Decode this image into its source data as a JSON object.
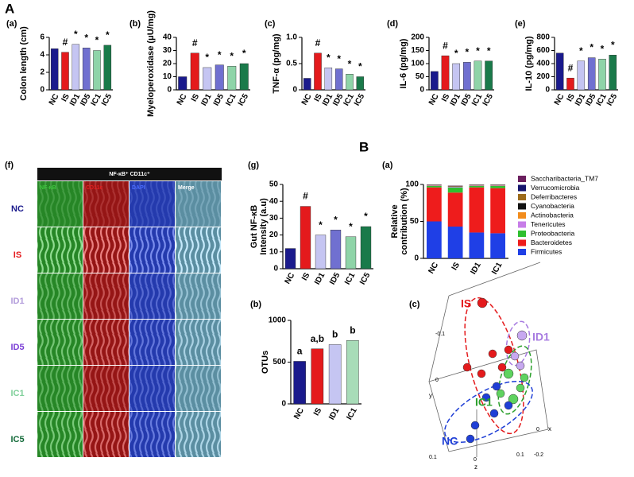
{
  "labels": {
    "A": "A",
    "B": "B"
  },
  "figure_f": {
    "panel": "(f)",
    "title": "NF-κB⁺ CD11c⁺",
    "columns": [
      "NF-κB",
      "CD11c",
      "DAPI",
      "Merge"
    ],
    "column_colors": [
      "#3ec43e",
      "#e02020",
      "#4a6cff",
      "#ffffff"
    ],
    "rows": [
      "NC",
      "IS",
      "ID1",
      "ID5",
      "IC1",
      "IC5"
    ],
    "row_colors": [
      "#1a1a8c",
      "#e41a1c",
      "#b39ddb",
      "#7b3fd6",
      "#7fcf9a",
      "#146b3a"
    ]
  },
  "pca": {
    "panel": "(c)",
    "groups": [
      "IS",
      "ID1",
      "IC1",
      "NC"
    ],
    "group_colors": [
      "#e41a1c",
      "#a77be0",
      "#2ca02c",
      "#1f3fd6"
    ],
    "ticks": [
      "-0.1",
      "0",
      "0.1",
      "0",
      "x",
      "y",
      "z",
      "0.1",
      "0",
      "-0.2"
    ]
  },
  "chart_data": [
    {
      "type": "bar",
      "panel": "(a)",
      "ylabel": [
        "Colon length (cm)"
      ],
      "categories": [
        "NC",
        "IS",
        "ID1",
        "ID5",
        "IC1",
        "IC5"
      ],
      "values": [
        4.7,
        4.3,
        5.2,
        4.8,
        4.5,
        5.1
      ],
      "colors": [
        "#1a1a8c",
        "#e41a1c",
        "#c5c5f2",
        "#7070d0",
        "#8fd4a8",
        "#1a7a4a"
      ],
      "annotations": [
        null,
        "#",
        "*",
        "*",
        "*",
        "*"
      ],
      "ylim": [
        0,
        6
      ],
      "yticks": [
        0,
        2,
        4,
        6
      ]
    },
    {
      "type": "bar",
      "panel": "(b)",
      "ylabel": [
        "Myeloperoxidase (μU/mg)"
      ],
      "categories": [
        "NC",
        "IS",
        "ID1",
        "ID5",
        "IC1",
        "IC5"
      ],
      "values": [
        10,
        28,
        17,
        19,
        18,
        20
      ],
      "colors": [
        "#1a1a8c",
        "#e41a1c",
        "#c5c5f2",
        "#7070d0",
        "#8fd4a8",
        "#1a7a4a"
      ],
      "annotations": [
        null,
        "#",
        "*",
        "*",
        "*",
        "*"
      ],
      "ylim": [
        0,
        40
      ],
      "yticks": [
        0,
        10,
        20,
        30,
        40
      ]
    },
    {
      "type": "bar",
      "panel": "(c)",
      "ylabel": [
        "TNF-α (pg/mg)"
      ],
      "categories": [
        "NC",
        "IS",
        "ID1",
        "ID5",
        "IC1",
        "IC5"
      ],
      "values": [
        0.22,
        0.7,
        0.42,
        0.4,
        0.3,
        0.25
      ],
      "colors": [
        "#1a1a8c",
        "#e41a1c",
        "#c5c5f2",
        "#7070d0",
        "#8fd4a8",
        "#1a7a4a"
      ],
      "annotations": [
        null,
        "#",
        "*",
        "*",
        "*",
        "*"
      ],
      "ylim": [
        0,
        1
      ],
      "yticks": [
        0,
        0.5,
        {
          "value": 1,
          "label": "1.0"
        }
      ]
    },
    {
      "type": "bar",
      "panel": "(d)",
      "ylabel": [
        "IL-6 (pg/mg)"
      ],
      "categories": [
        "NC",
        "IS",
        "ID1",
        "ID5",
        "IC1",
        "IC5"
      ],
      "values": [
        70,
        130,
        100,
        105,
        110,
        110
      ],
      "colors": [
        "#1a1a8c",
        "#e41a1c",
        "#c5c5f2",
        "#7070d0",
        "#8fd4a8",
        "#1a7a4a"
      ],
      "annotations": [
        null,
        "#",
        "*",
        "*",
        "*",
        "*"
      ],
      "ylim": [
        0,
        200
      ],
      "yticks": [
        0,
        50,
        100,
        150,
        200
      ]
    },
    {
      "type": "bar",
      "panel": "(e)",
      "ylabel": [
        "IL-10 (pg/mg)"
      ],
      "categories": [
        "NC",
        "IS",
        "ID1",
        "ID5",
        "IC1",
        "IC5"
      ],
      "values": [
        560,
        180,
        440,
        490,
        470,
        530
      ],
      "colors": [
        "#1a1a8c",
        "#e41a1c",
        "#c5c5f2",
        "#7070d0",
        "#8fd4a8",
        "#1a7a4a"
      ],
      "annotations": [
        null,
        "#",
        "*",
        "*",
        "*",
        "*"
      ],
      "ylim": [
        0,
        800
      ],
      "yticks": [
        0,
        200,
        400,
        600,
        800
      ]
    },
    {
      "type": "bar",
      "panel": "(g)",
      "ylabel": [
        "Gut NF-κB",
        "Intensity (a.u)"
      ],
      "categories": [
        "NC",
        "IS",
        "ID1",
        "ID5",
        "IC1",
        "IC5"
      ],
      "values": [
        12,
        37,
        20,
        23,
        19,
        25
      ],
      "colors": [
        "#1a1a8c",
        "#e41a1c",
        "#c5c5f2",
        "#7070d0",
        "#8fd4a8",
        "#1a7a4a"
      ],
      "annotations": [
        null,
        "#",
        "*",
        "*",
        "*",
        "*"
      ],
      "ylim": [
        0,
        50
      ],
      "yticks": [
        0,
        10,
        20,
        30,
        40,
        50
      ]
    },
    {
      "type": "bar",
      "panel": "(b)",
      "ylabel": [
        "OTUs"
      ],
      "categories": [
        "NC",
        "IS",
        "ID1",
        "IC1"
      ],
      "values": [
        510,
        660,
        710,
        760
      ],
      "colors": [
        "#1a1a8c",
        "#e41a1c",
        "#c5c5f2",
        "#a8dcb8"
      ],
      "annotations": [
        "a",
        "a,b",
        "b",
        "b"
      ],
      "ylim": [
        0,
        1000
      ],
      "yticks": [
        0,
        500,
        1000
      ]
    },
    {
      "type": "stacked_bar",
      "panel": "(a)",
      "ylabel": [
        "Relative",
        "contribution (%)"
      ],
      "categories": [
        "NC",
        "IS",
        "ID1",
        "IC1"
      ],
      "ylim": [
        0,
        100
      ],
      "yticks": [
        0,
        50,
        100
      ],
      "series": [
        {
          "name": "Firmicutes",
          "color": "#1f3fe6",
          "values": [
            50,
            43,
            35,
            34
          ]
        },
        {
          "name": "Bacteroidetes",
          "color": "#ee1c1c",
          "values": [
            46,
            46,
            61,
            61
          ]
        },
        {
          "name": "Proteobacteria",
          "color": "#2fbf2f",
          "values": [
            2,
            7,
            2,
            3
          ]
        },
        {
          "name": "Tenericutes",
          "color": "#c77de8",
          "values": [
            0.5,
            1,
            0.5,
            0.5
          ]
        },
        {
          "name": "Actinobacteria",
          "color": "#f28c1c",
          "values": [
            0.3,
            0.3,
            0.3,
            0.3
          ]
        },
        {
          "name": "Cyanobacteria",
          "color": "#111111",
          "values": [
            0.5,
            0.5,
            0.5,
            0.5
          ]
        },
        {
          "name": "Deferribacteres",
          "color": "#9c6b1c",
          "values": [
            0.3,
            0.3,
            0.3,
            0.3
          ]
        },
        {
          "name": "Verrucomicrobia",
          "color": "#16166e",
          "values": [
            0.2,
            0.2,
            0.2,
            0.2
          ]
        },
        {
          "name": "Saccharibacteria_TM7",
          "color": "#6b1f5e",
          "values": [
            0.2,
            0.2,
            0.2,
            0.2
          ]
        }
      ]
    }
  ]
}
